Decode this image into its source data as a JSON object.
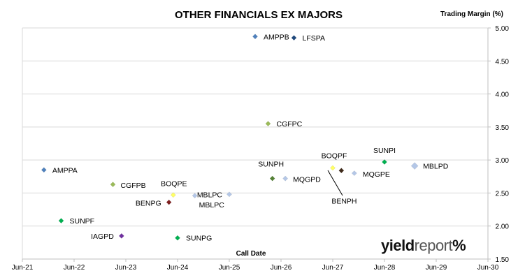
{
  "chart_data": {
    "type": "scatter",
    "title": "OTHER FINANCIALS EX MAJORS",
    "ylabel": "Trading Margin (%)",
    "xlabel": "Call Date",
    "x_ticks": [
      "Jun-21",
      "Jun-22",
      "Jun-23",
      "Jun-24",
      "Jun-25",
      "Jun-26",
      "Jun-27",
      "Jun-28",
      "Jun-29",
      "Jun-30"
    ],
    "y_ticks": [
      "1.50",
      "2.00",
      "2.50",
      "3.00",
      "3.50",
      "4.00",
      "4.50",
      "5.00"
    ],
    "xlim": [
      "2021-06",
      "2030-06"
    ],
    "ylim": [
      1.5,
      5.0
    ],
    "y_axis_position": "right",
    "grid": "horizontal",
    "points": [
      {
        "label": "AMPPB",
        "x": "2025-12",
        "y": 4.87,
        "color": "#4f81bd"
      },
      {
        "label": "LFSPA",
        "x": "2026-09",
        "y": 4.85,
        "color": "#1f497d"
      },
      {
        "label": "CGFPC",
        "x": "2026-03",
        "y": 3.55,
        "color": "#9bbb59"
      },
      {
        "label": "AMPPA",
        "x": "2021-11",
        "y": 2.85,
        "color": "#4f81bd"
      },
      {
        "label": "SUNPI",
        "x": "2028-06",
        "y": 2.97,
        "color": "#00b050"
      },
      {
        "label": "MBLPD",
        "x": "2029-01",
        "y": 2.91,
        "color": "#b4c7e7"
      },
      {
        "label": "BOQPF",
        "x": "2027-06",
        "y": 2.88,
        "color": "#ffff66"
      },
      {
        "label": "BENPH",
        "x": "2027-08",
        "y": 2.84,
        "color": "#3f2a1a"
      },
      {
        "label": "MQGPE",
        "x": "2027-11",
        "y": 2.8,
        "color": "#b4c7e7"
      },
      {
        "label": "SUNPH",
        "x": "2026-04",
        "y": 2.72,
        "color": "#548235"
      },
      {
        "label": "MQGPD",
        "x": "2026-07",
        "y": 2.72,
        "color": "#b4c7e7"
      },
      {
        "label": "CGFPB",
        "x": "2023-03",
        "y": 2.63,
        "color": "#9bbb59"
      },
      {
        "label": "BOQPE",
        "x": "2024-05",
        "y": 2.47,
        "color": "#ffff66"
      },
      {
        "label": "MBLPC",
        "x": "2025-06",
        "y": 2.48,
        "color": "#b4c7e7"
      },
      {
        "label": "MBLPC",
        "x": "2024-10",
        "y": 2.46,
        "color": "#b4c7e7"
      },
      {
        "label": "BENPG",
        "x": "2024-04",
        "y": 2.36,
        "color": "#7f1f1f"
      },
      {
        "label": "SUNPF",
        "x": "2022-03",
        "y": 2.08,
        "color": "#00b050"
      },
      {
        "label": "IAGPD",
        "x": "2023-05",
        "y": 1.85,
        "color": "#7030a0"
      },
      {
        "label": "SUNPG",
        "x": "2024-06",
        "y": 1.82,
        "color": "#00b050"
      }
    ]
  },
  "logo": {
    "word1": "yield",
    "word2": "report",
    "pct": "%"
  }
}
